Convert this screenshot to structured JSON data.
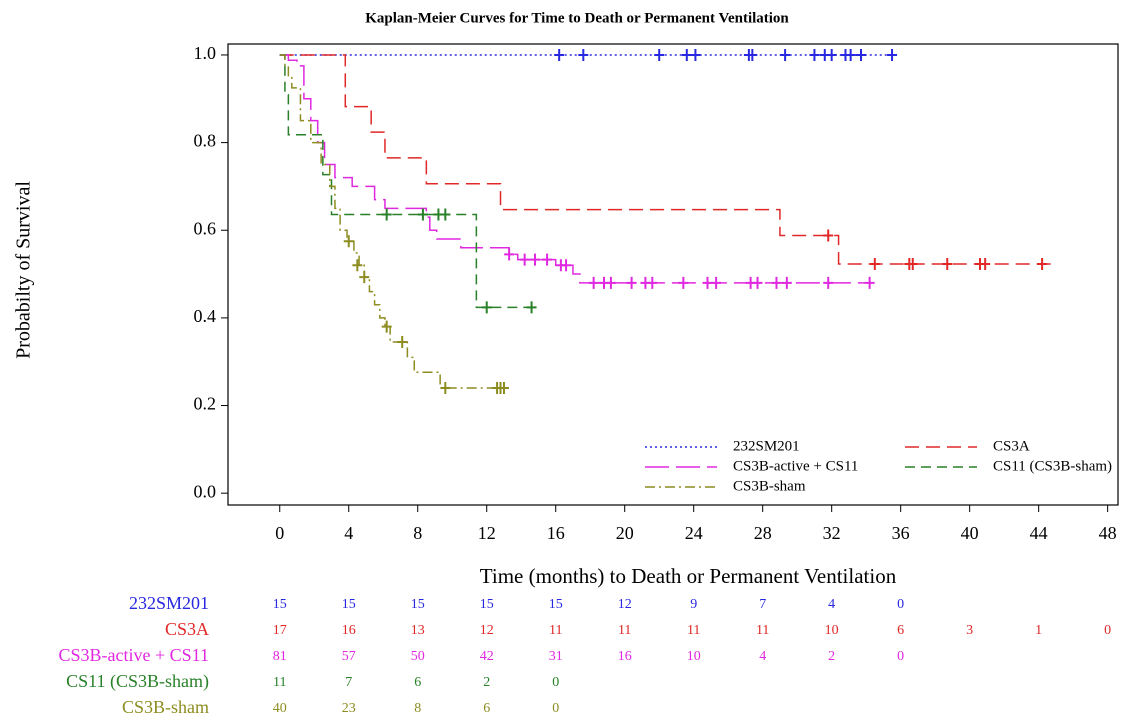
{
  "chart_data": {
    "type": "step",
    "title": "Kaplan-Meier Curves for Time to Death or Permanent Ventilation",
    "xlabel": "Time (months) to Death or Permanent Ventilation",
    "ylabel": "Probabilty of Survival",
    "xlim": [
      -3,
      48.6
    ],
    "ylim": [
      -0.027,
      1.025
    ],
    "xticks": [
      0,
      4,
      8,
      12,
      16,
      20,
      24,
      28,
      32,
      36,
      40,
      44,
      48
    ],
    "yticks": [
      {
        "value": 0,
        "label": "0.0"
      },
      {
        "value": 0.2,
        "label": "0.2"
      },
      {
        "value": 0.4,
        "label": "0.4"
      },
      {
        "value": 0.6,
        "label": "0.6"
      },
      {
        "value": 0.8,
        "label": "0.8"
      },
      {
        "value": 1,
        "label": "1.0"
      }
    ],
    "legend": "lower-right",
    "series": [
      {
        "name": "232SM201",
        "color": "#2828e0",
        "dash": "2,3",
        "x": [
          0,
          35.5
        ],
        "values": [
          1,
          1
        ],
        "censor_x": [
          16.2,
          17.6,
          22,
          23.6,
          24.1,
          27.2,
          27.4,
          29.3,
          31,
          31.6,
          32,
          32.8,
          33.1,
          33.7,
          35.5
        ],
        "censor_values": [
          1,
          1,
          1,
          1,
          1,
          1,
          1,
          1,
          1,
          1,
          1,
          1,
          1,
          1,
          1
        ]
      },
      {
        "name": "CS3A",
        "color": "#e02828",
        "dash": "14,7",
        "x": [
          0,
          3.8,
          5.3,
          6.1,
          8.5,
          12.8,
          29.0,
          32.4,
          44.9
        ],
        "values": [
          1,
          0.882,
          0.824,
          0.765,
          0.706,
          0.647,
          0.588,
          0.523,
          0.523
        ],
        "censor_x": [
          31.8,
          34.5,
          36.5,
          36.7,
          38.7,
          40.6,
          40.9,
          44.2
        ],
        "censor_values": [
          0.588,
          0.523,
          0.523,
          0.523,
          0.523,
          0.523,
          0.523,
          0.523
        ]
      },
      {
        "name": "CS3B-active + CS11",
        "color": "#e028e0",
        "dash": "24,7",
        "x": [
          0,
          0.5,
          1,
          1.4,
          1.8,
          2.2,
          2.6,
          3.2,
          4.2,
          5.5,
          6.1,
          8.5,
          8.7,
          9.1,
          10.5,
          13.3,
          13.8,
          16,
          17,
          17.4,
          34.3
        ],
        "values": [
          1,
          0.988,
          0.975,
          0.9,
          0.85,
          0.8,
          0.75,
          0.72,
          0.7,
          0.67,
          0.65,
          0.63,
          0.6,
          0.58,
          0.56,
          0.545,
          0.533,
          0.52,
          0.5,
          0.48,
          0.48
        ],
        "censor_x": [
          13.3,
          14.2,
          14.8,
          15.5,
          16.3,
          16.6,
          18.2,
          18.8,
          19.2,
          20.4,
          21.2,
          21.6,
          23.4,
          24.8,
          25.3,
          27.3,
          27.7,
          28.8,
          29.4,
          31.8,
          34.2
        ],
        "censor_values": [
          0.545,
          0.533,
          0.533,
          0.533,
          0.52,
          0.52,
          0.48,
          0.48,
          0.48,
          0.48,
          0.48,
          0.48,
          0.48,
          0.48,
          0.48,
          0.48,
          0.48,
          0.48,
          0.48,
          0.48,
          0.48
        ]
      },
      {
        "name": "CS11 (CS3B-sham)",
        "color": "#288028",
        "dash": "10,6",
        "x": [
          0,
          0.3,
          0.5,
          2.5,
          3.0,
          11.4,
          14.6
        ],
        "values": [
          1,
          0.909,
          0.818,
          0.727,
          0.636,
          0.424,
          0.424
        ],
        "censor_x": [
          6.2,
          8.3,
          9.2,
          9.6,
          12.0,
          14.6
        ],
        "censor_values": [
          0.636,
          0.636,
          0.636,
          0.636,
          0.424,
          0.424
        ]
      },
      {
        "name": "CS3B-sham",
        "color": "#8c8c20",
        "dash": "10,4,2,4",
        "x": [
          0,
          0.3,
          0.5,
          0.7,
          1.2,
          1.8,
          2.4,
          2.9,
          3.2,
          3.5,
          3.9,
          4.3,
          4.6,
          4.9,
          5.2,
          5.5,
          5.8,
          6.1,
          6.4,
          7.4,
          7.8,
          9.3,
          13
        ],
        "values": [
          1,
          0.975,
          0.95,
          0.925,
          0.85,
          0.8,
          0.75,
          0.7,
          0.65,
          0.6,
          0.575,
          0.548,
          0.52,
          0.493,
          0.46,
          0.43,
          0.4,
          0.38,
          0.345,
          0.31,
          0.276,
          0.24,
          0.24
        ],
        "censor_x": [
          4.0,
          4.5,
          4.9,
          6.2,
          7.1,
          9.6,
          12.6,
          12.8,
          13
        ],
        "censor_values": [
          0.575,
          0.52,
          0.493,
          0.38,
          0.345,
          0.24,
          0.24,
          0.24,
          0.24
        ]
      }
    ],
    "risk_table": [
      {
        "name": "232SM201",
        "color": "#2828e0",
        "values": [
          15,
          15,
          15,
          15,
          15,
          12,
          9,
          7,
          4,
          0
        ]
      },
      {
        "name": "CS3A",
        "color": "#e02828",
        "values": [
          17,
          16,
          13,
          12,
          11,
          11,
          11,
          11,
          10,
          6,
          3,
          1,
          0
        ]
      },
      {
        "name": "CS3B-active + CS11",
        "color": "#e028e0",
        "values": [
          81,
          57,
          50,
          42,
          31,
          16,
          10,
          4,
          2,
          0
        ]
      },
      {
        "name": "CS11 (CS3B-sham)",
        "color": "#288028",
        "values": [
          11,
          7,
          6,
          2,
          0
        ]
      },
      {
        "name": "CS3B-sham",
        "color": "#8c8c20",
        "values": [
          40,
          23,
          8,
          6,
          0
        ]
      }
    ]
  }
}
